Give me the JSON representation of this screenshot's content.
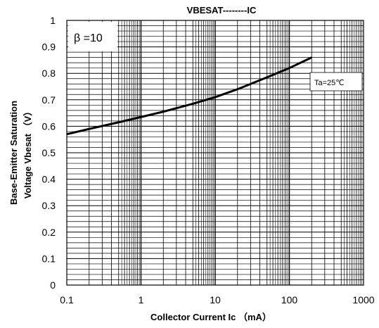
{
  "chart_data": {
    "type": "line",
    "title": "VBESAT--------IC",
    "xlabel": "Collector Current Ic （mA）",
    "ylabel_lines": [
      "Base-Emitter Saturation",
      "Voltage Vbesat （V）"
    ],
    "x_scale": "log",
    "xlim": [
      0.1,
      1000
    ],
    "ylim": [
      0,
      1
    ],
    "grid": true,
    "x_ticks": [
      {
        "value": 0.1,
        "label": "0.1"
      },
      {
        "value": 1,
        "label": "1"
      },
      {
        "value": 10,
        "label": "10"
      },
      {
        "value": 100,
        "label": "100"
      },
      {
        "value": 1000,
        "label": "1000"
      }
    ],
    "y_ticks": [
      {
        "value": 0,
        "label": "0"
      },
      {
        "value": 0.1,
        "label": "0.1"
      },
      {
        "value": 0.2,
        "label": "0.2"
      },
      {
        "value": 0.3,
        "label": "0.3"
      },
      {
        "value": 0.4,
        "label": "0.4"
      },
      {
        "value": 0.5,
        "label": "0.5"
      },
      {
        "value": 0.6,
        "label": "0.6"
      },
      {
        "value": 0.7,
        "label": "0.7"
      },
      {
        "value": 0.8,
        "label": "0.8"
      },
      {
        "value": 0.9,
        "label": "0.9"
      },
      {
        "value": 1,
        "label": "1"
      }
    ],
    "series": [
      {
        "x": [
          0.1,
          0.2,
          0.5,
          1,
          2,
          5,
          10,
          20,
          50,
          100,
          200
        ],
        "y": [
          0.57,
          0.59,
          0.615,
          0.635,
          0.655,
          0.685,
          0.71,
          0.74,
          0.785,
          0.82,
          0.86
        ],
        "color": "#000000"
      }
    ],
    "annotations": {
      "beta": "β =10",
      "temperature": "Ta=25℃"
    }
  }
}
